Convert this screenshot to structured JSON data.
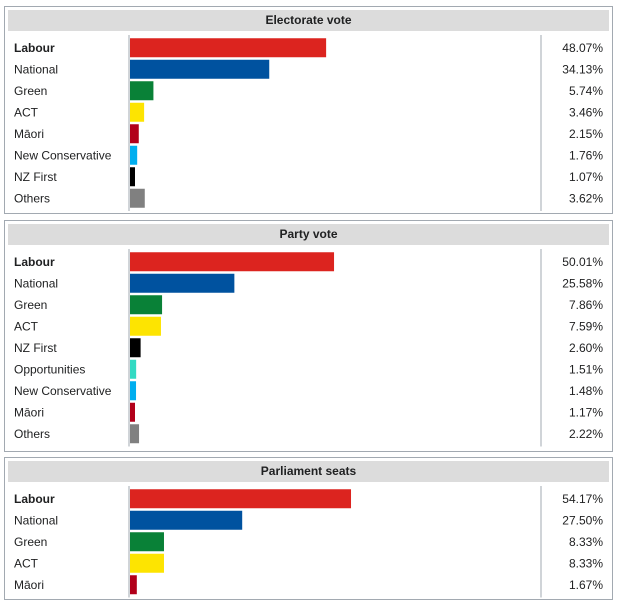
{
  "chart_data": [
    {
      "type": "bar",
      "title": "Electorate vote",
      "categories": [
        "Labour",
        "National",
        "Green",
        "ACT",
        "Māori",
        "New Conservative",
        "NZ First",
        "Others"
      ],
      "values": [
        48.07,
        34.13,
        5.74,
        3.46,
        2.15,
        1.76,
        1.07,
        3.62
      ],
      "value_labels": [
        "48.07%",
        "34.13%",
        "5.74%",
        "3.46%",
        "2.15%",
        "1.76%",
        "1.07%",
        "3.62%"
      ],
      "colors": [
        "#dc241f",
        "#00529f",
        "#098137",
        "#fde401",
        "#b2001a",
        "#00aeef",
        "#000000",
        "#808080"
      ],
      "bold_first": true
    },
    {
      "type": "bar",
      "title": "Party vote",
      "categories": [
        "Labour",
        "National",
        "Green",
        "ACT",
        "NZ First",
        "Opportunities",
        "New Conservative",
        "Māori",
        "Others"
      ],
      "values": [
        50.01,
        25.58,
        7.86,
        7.59,
        2.6,
        1.51,
        1.48,
        1.17,
        2.22
      ],
      "value_labels": [
        "50.01%",
        "25.58%",
        "7.86%",
        "7.59%",
        "2.60%",
        "1.51%",
        "1.48%",
        "1.17%",
        "2.22%"
      ],
      "colors": [
        "#dc241f",
        "#00529f",
        "#098137",
        "#fde401",
        "#000000",
        "#32dac3",
        "#00aeef",
        "#b2001a",
        "#808080"
      ],
      "bold_first": true
    },
    {
      "type": "bar",
      "title": "Parliament seats",
      "categories": [
        "Labour",
        "National",
        "Green",
        "ACT",
        "Māori"
      ],
      "values": [
        54.17,
        27.5,
        8.33,
        8.33,
        1.67
      ],
      "value_labels": [
        "54.17%",
        "27.50%",
        "8.33%",
        "8.33%",
        "1.67%"
      ],
      "colors": [
        "#dc241f",
        "#00529f",
        "#098137",
        "#fde401",
        "#b2001a"
      ],
      "bold_first": true
    }
  ]
}
